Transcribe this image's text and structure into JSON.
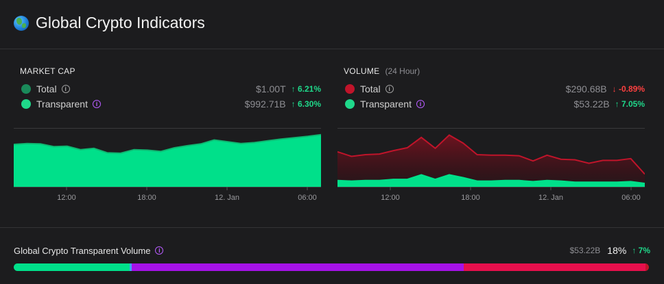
{
  "header": {
    "title": "Global Crypto Indicators",
    "icon": "globe-icon"
  },
  "market_cap": {
    "heading": "MARKET CAP",
    "rows": [
      {
        "label": "Total",
        "value": "$1.00T",
        "change": "6.21%",
        "direction": "up",
        "dot_color": "#1a8a5a",
        "info": "info-icon"
      },
      {
        "label": "Transparent",
        "value": "$992.71B",
        "change": "6.30%",
        "direction": "up",
        "dot_color": "#1fd88a",
        "info": "info-icon"
      }
    ]
  },
  "volume": {
    "heading": "VOLUME",
    "subheading": "(24 Hour)",
    "rows": [
      {
        "label": "Total",
        "value": "$290.68B",
        "change": "-0.89%",
        "direction": "down",
        "dot_color": "#c0142a",
        "info": "info-icon"
      },
      {
        "label": "Transparent",
        "value": "$53.22B",
        "change": "7.05%",
        "direction": "up",
        "dot_color": "#1fd88a",
        "info": "info-icon"
      }
    ]
  },
  "chart_data": [
    {
      "type": "area",
      "x_ticks": [
        "12:00",
        "18:00",
        "12. Jan",
        "06:00"
      ],
      "series": [
        {
          "values": [
            0.96,
            0.98,
            0.97,
            0.91,
            0.92,
            0.84,
            0.87,
            0.77,
            0.76,
            0.84,
            0.83,
            0.8,
            0.88,
            0.93,
            0.97,
            1.06,
            1.02,
            0.98,
            1.0,
            1.04,
            1.08,
            1.11,
            1.14,
            1.18
          ],
          "color": "#00e08a"
        }
      ],
      "ylim": [
        0,
        1.3
      ]
    },
    {
      "type": "area",
      "x_ticks": [
        "12:00",
        "18:00",
        "12. Jan",
        "06:00"
      ],
      "series": [
        {
          "values": [
            61,
            53,
            56,
            57,
            63,
            68,
            86,
            67,
            90,
            76,
            56,
            55,
            55,
            54,
            45,
            55,
            48,
            47,
            41,
            46,
            46,
            49,
            22
          ],
          "color": "#c0142a"
        },
        {
          "values": [
            11,
            10,
            11,
            11,
            13,
            13,
            21,
            13,
            21,
            16,
            10,
            10,
            11,
            11,
            9,
            11,
            10,
            8,
            8,
            8,
            8,
            9,
            6
          ],
          "color": "#00e08a"
        }
      ],
      "ylim": [
        0,
        100
      ]
    }
  ],
  "footer": {
    "label": "Global Crypto Transparent Volume",
    "value": "$53.22B",
    "percent": "18%",
    "change": "7%",
    "bar_segments": [
      {
        "fraction": 0.183,
        "color": "#00e08a"
      },
      {
        "fraction": 0.003,
        "color": "#3fa0ff"
      },
      {
        "fraction": 0.522,
        "color": "#a512e8"
      },
      {
        "fraction": 0.287,
        "color": "#e60f4c"
      },
      {
        "fraction": 0.005,
        "color": "#c0142a"
      }
    ]
  }
}
